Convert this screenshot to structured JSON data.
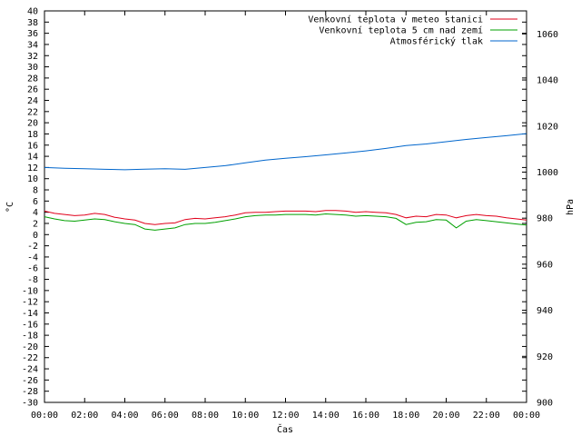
{
  "chart_data": {
    "type": "line",
    "xlabel": "Čas",
    "ylabel": "°C",
    "y2label": "hPa",
    "x_ticks": [
      "00:00",
      "02:00",
      "04:00",
      "06:00",
      "08:00",
      "10:00",
      "12:00",
      "14:00",
      "16:00",
      "18:00",
      "20:00",
      "22:00",
      "00:00"
    ],
    "x_range_hours": [
      0,
      24
    ],
    "ylim": [
      -30,
      40
    ],
    "y_tick_step": 2,
    "y2lim": [
      900,
      1070
    ],
    "y2_ticks": [
      900,
      920,
      940,
      960,
      980,
      1000,
      1020,
      1040,
      1060
    ],
    "grid": false,
    "legend_position": "top-right",
    "series": [
      {
        "name": "Venkovní teplota v meteo stanici",
        "color": "#e0001b",
        "axis": "left",
        "x": [
          0,
          0.5,
          1,
          1.5,
          2,
          2.5,
          3,
          3.5,
          4,
          4.5,
          5,
          5.5,
          6,
          6.5,
          7,
          7.5,
          8,
          8.5,
          9,
          9.5,
          10,
          10.5,
          11,
          11.5,
          12,
          12.5,
          13,
          13.5,
          14,
          14.5,
          15,
          15.5,
          16,
          16.5,
          17,
          17.5,
          18,
          18.5,
          19,
          19.5,
          20,
          20.5,
          21,
          21.5,
          22,
          22.5,
          23,
          23.5,
          24
        ],
        "y": [
          4.2,
          3.8,
          3.6,
          3.4,
          3.5,
          3.8,
          3.6,
          3.1,
          2.8,
          2.6,
          2.0,
          1.8,
          2.0,
          2.1,
          2.7,
          2.9,
          2.8,
          3.0,
          3.2,
          3.5,
          3.9,
          4.0,
          4.0,
          4.1,
          4.2,
          4.2,
          4.2,
          4.1,
          4.3,
          4.3,
          4.2,
          4.0,
          4.1,
          4.0,
          3.9,
          3.6,
          3.0,
          3.3,
          3.2,
          3.6,
          3.5,
          3.0,
          3.4,
          3.6,
          3.4,
          3.3,
          3.0,
          2.8,
          2.6
        ]
      },
      {
        "name": "Venkovní teplota 5 cm nad zemí",
        "color": "#00a000",
        "axis": "left",
        "x": [
          0,
          0.5,
          1,
          1.5,
          2,
          2.5,
          3,
          3.5,
          4,
          4.5,
          5,
          5.5,
          6,
          6.5,
          7,
          7.5,
          8,
          8.5,
          9,
          9.5,
          10,
          10.5,
          11,
          11.5,
          12,
          12.5,
          13,
          13.5,
          14,
          14.5,
          15,
          15.5,
          16,
          16.5,
          17,
          17.5,
          18,
          18.5,
          19,
          19.5,
          20,
          20.5,
          21,
          21.5,
          22,
          22.5,
          23,
          23.5,
          24
        ],
        "y": [
          3.2,
          2.8,
          2.5,
          2.4,
          2.6,
          2.8,
          2.7,
          2.3,
          2.0,
          1.8,
          1.0,
          0.8,
          1.0,
          1.2,
          1.8,
          2.0,
          2.0,
          2.2,
          2.5,
          2.8,
          3.2,
          3.4,
          3.5,
          3.5,
          3.6,
          3.6,
          3.6,
          3.5,
          3.7,
          3.6,
          3.5,
          3.3,
          3.4,
          3.3,
          3.2,
          2.9,
          1.8,
          2.2,
          2.3,
          2.7,
          2.6,
          1.2,
          2.4,
          2.7,
          2.5,
          2.3,
          2.1,
          1.9,
          1.7
        ]
      },
      {
        "name": "Atmosférický tlak",
        "color": "#0066cc",
        "axis": "right",
        "x": [
          0,
          1,
          2,
          3,
          4,
          5,
          6,
          7,
          8,
          9,
          10,
          11,
          12,
          13,
          14,
          15,
          16,
          17,
          18,
          19,
          20,
          21,
          22,
          23,
          24
        ],
        "y": [
          1002.0,
          1001.7,
          1001.5,
          1001.2,
          1001.0,
          1001.3,
          1001.5,
          1001.2,
          1002.0,
          1002.8,
          1004.0,
          1005.2,
          1006.0,
          1006.7,
          1007.5,
          1008.3,
          1009.2,
          1010.3,
          1011.5,
          1012.2,
          1013.2,
          1014.2,
          1015.0,
          1015.8,
          1016.7
        ]
      }
    ]
  }
}
